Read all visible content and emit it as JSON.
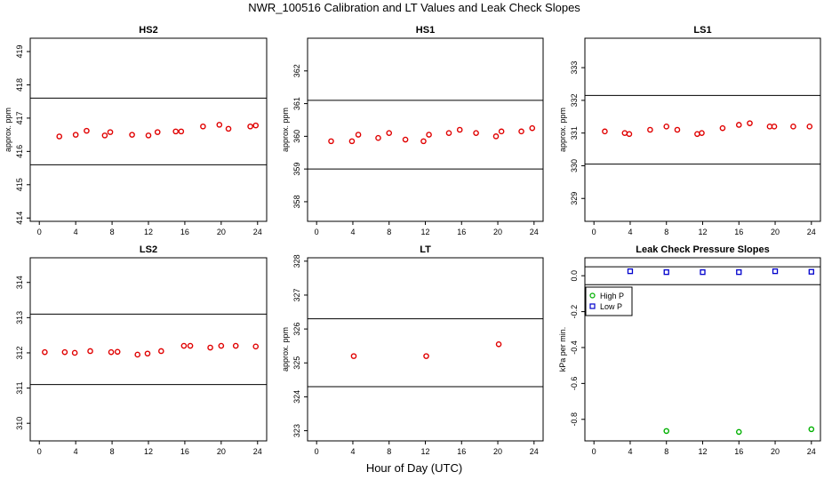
{
  "title": "NWR_100516  Calibration and LT Values and Leak Check Slopes",
  "xlabel": "Hour of Day (UTC)",
  "colors": {
    "cal_points": "#e00000",
    "high_p": "#00b000",
    "low_p": "#0000cc",
    "frame": "#000000"
  },
  "chart_data": [
    {
      "type": "scatter",
      "title": "HS2",
      "ylabel": "approx. ppm",
      "xlim": [
        -1,
        25
      ],
      "ylim": [
        413.9,
        419.4
      ],
      "xticks": [
        "0",
        "4",
        "8",
        "12",
        "16",
        "20",
        "24"
      ],
      "yticks": [
        "414",
        "415",
        "416",
        "417",
        "418",
        "419"
      ],
      "hlines": [
        415.6,
        417.6
      ],
      "series": [
        {
          "color": "#e00000",
          "points": [
            [
              2.2,
              416.45
            ],
            [
              4.0,
              416.5
            ],
            [
              5.2,
              416.62
            ],
            [
              7.2,
              416.48
            ],
            [
              7.8,
              416.58
            ],
            [
              10.2,
              416.5
            ],
            [
              12.0,
              416.48
            ],
            [
              13.0,
              416.58
            ],
            [
              15.0,
              416.6
            ],
            [
              15.6,
              416.6
            ],
            [
              18.0,
              416.75
            ],
            [
              19.8,
              416.8
            ],
            [
              20.8,
              416.68
            ],
            [
              23.2,
              416.75
            ],
            [
              23.8,
              416.78
            ]
          ]
        }
      ]
    },
    {
      "type": "scatter",
      "title": "HS1",
      "ylabel": "approx. ppm",
      "xlim": [
        -1,
        25
      ],
      "ylim": [
        357.4,
        363.0
      ],
      "xticks": [
        "0",
        "4",
        "8",
        "12",
        "16",
        "20",
        "24"
      ],
      "yticks": [
        "358",
        "359",
        "360",
        "361",
        "362"
      ],
      "hlines": [
        359.0,
        361.1
      ],
      "series": [
        {
          "color": "#e00000",
          "points": [
            [
              1.6,
              359.85
            ],
            [
              3.9,
              359.85
            ],
            [
              4.6,
              360.05
            ],
            [
              6.8,
              359.95
            ],
            [
              8.0,
              360.1
            ],
            [
              9.8,
              359.9
            ],
            [
              11.8,
              359.85
            ],
            [
              12.4,
              360.05
            ],
            [
              14.6,
              360.1
            ],
            [
              15.8,
              360.2
            ],
            [
              17.6,
              360.1
            ],
            [
              19.8,
              360.0
            ],
            [
              20.4,
              360.15
            ],
            [
              22.6,
              360.15
            ],
            [
              23.8,
              360.25
            ]
          ]
        }
      ]
    },
    {
      "type": "scatter",
      "title": "LS1",
      "ylabel": "approx. ppm",
      "xlim": [
        -1,
        25
      ],
      "ylim": [
        328.3,
        333.9
      ],
      "xticks": [
        "0",
        "4",
        "8",
        "12",
        "16",
        "20",
        "24"
      ],
      "yticks": [
        "329",
        "330",
        "331",
        "332",
        "333"
      ],
      "hlines": [
        330.05,
        332.15
      ],
      "series": [
        {
          "color": "#e00000",
          "points": [
            [
              1.2,
              331.05
            ],
            [
              3.4,
              331.0
            ],
            [
              3.9,
              330.97
            ],
            [
              6.2,
              331.1
            ],
            [
              8.0,
              331.2
            ],
            [
              9.2,
              331.1
            ],
            [
              11.4,
              330.97
            ],
            [
              11.9,
              331.0
            ],
            [
              14.2,
              331.15
            ],
            [
              16.0,
              331.25
            ],
            [
              17.2,
              331.3
            ],
            [
              19.4,
              331.2
            ],
            [
              19.9,
              331.2
            ],
            [
              22.0,
              331.2
            ],
            [
              23.8,
              331.2
            ]
          ]
        }
      ]
    },
    {
      "type": "scatter",
      "title": "LS2",
      "ylabel": "",
      "xlim": [
        -1,
        25
      ],
      "ylim": [
        309.5,
        314.7
      ],
      "xticks": [
        "0",
        "4",
        "8",
        "12",
        "16",
        "20",
        "24"
      ],
      "yticks": [
        "310",
        "311",
        "312",
        "313",
        "314"
      ],
      "hlines": [
        311.1,
        313.1
      ],
      "series": [
        {
          "color": "#e00000",
          "points": [
            [
              0.6,
              312.02
            ],
            [
              2.8,
              312.02
            ],
            [
              3.9,
              312.0
            ],
            [
              5.6,
              312.05
            ],
            [
              7.9,
              312.02
            ],
            [
              8.6,
              312.03
            ],
            [
              10.8,
              311.95
            ],
            [
              11.9,
              311.98
            ],
            [
              13.4,
              312.05
            ],
            [
              15.9,
              312.2
            ],
            [
              16.6,
              312.2
            ],
            [
              18.8,
              312.15
            ],
            [
              20.0,
              312.2
            ],
            [
              21.6,
              312.2
            ],
            [
              23.8,
              312.18
            ]
          ]
        }
      ]
    },
    {
      "type": "scatter",
      "title": "LT",
      "ylabel": "approx. ppm",
      "xlim": [
        -1,
        25
      ],
      "ylim": [
        322.7,
        328.1
      ],
      "xticks": [
        "0",
        "4",
        "8",
        "12",
        "16",
        "20",
        "24"
      ],
      "yticks": [
        "323",
        "324",
        "325",
        "326",
        "327",
        "328"
      ],
      "hlines": [
        324.3,
        326.3
      ],
      "series": [
        {
          "color": "#e00000",
          "points": [
            [
              4.1,
              325.2
            ],
            [
              12.1,
              325.2
            ],
            [
              20.1,
              325.55
            ]
          ]
        }
      ]
    },
    {
      "type": "scatter",
      "title": "Leak Check Pressure Slopes",
      "ylabel": "kPa per min.",
      "xlim": [
        -1,
        25
      ],
      "ylim": [
        -0.92,
        0.1
      ],
      "xticks": [
        "0",
        "4",
        "8",
        "12",
        "16",
        "20",
        "24"
      ],
      "yticks": [
        "0.0",
        "-0.2",
        "-0.4",
        "-0.6",
        "-0.8"
      ],
      "hlines": [
        0.05,
        -0.05
      ],
      "legend": {
        "position": "top-left"
      },
      "series": [
        {
          "name": "High P",
          "color": "#00b000",
          "points": [
            [
              8.0,
              -0.865
            ],
            [
              16.0,
              -0.87
            ],
            [
              24.0,
              -0.855
            ]
          ]
        },
        {
          "name": "Low P",
          "color": "#0000cc",
          "points": [
            [
              4.0,
              0.025
            ],
            [
              8.0,
              0.02
            ],
            [
              12.0,
              0.02
            ],
            [
              16.0,
              0.02
            ],
            [
              20.0,
              0.025
            ],
            [
              24.0,
              0.022
            ]
          ]
        }
      ]
    }
  ]
}
